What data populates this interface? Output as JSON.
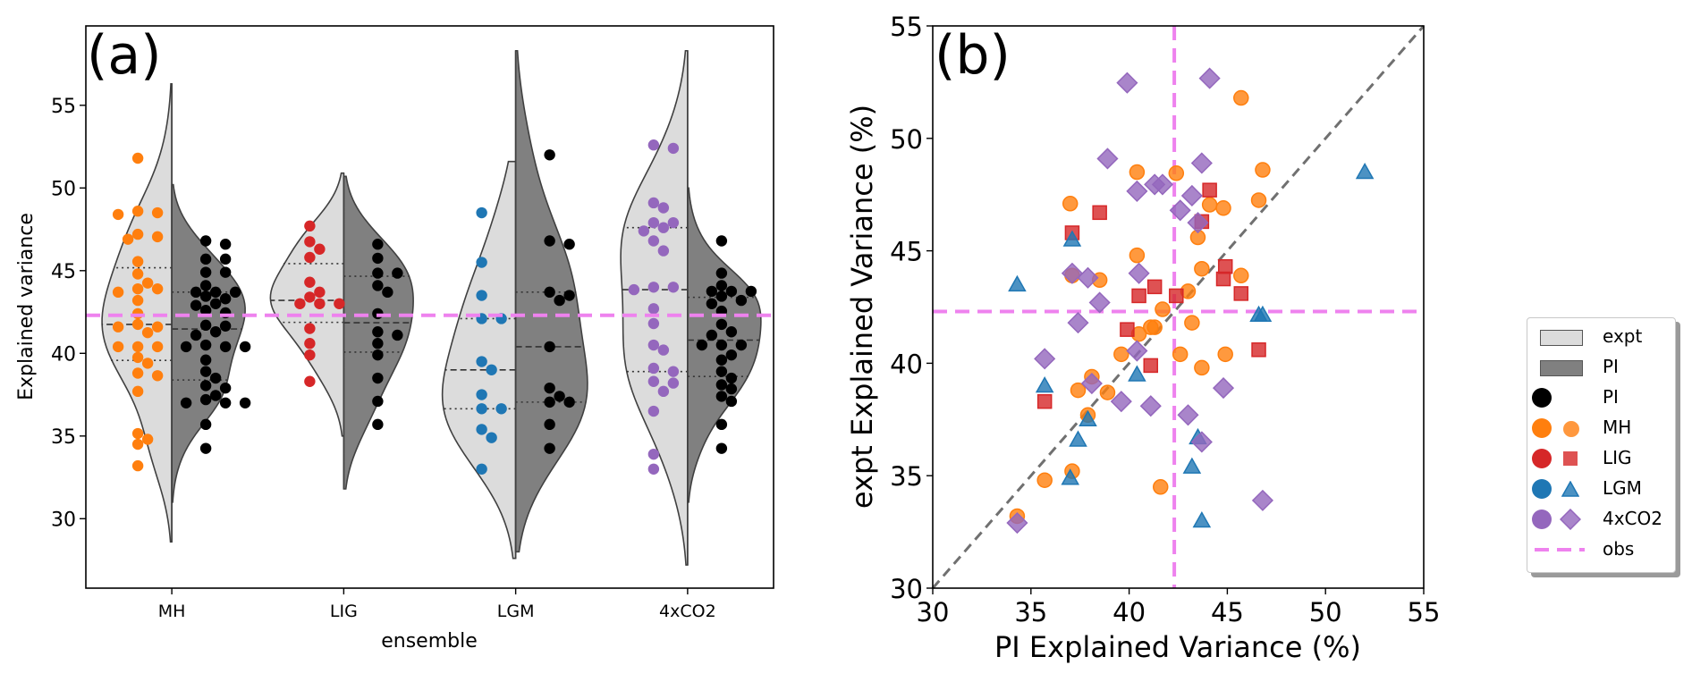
{
  "chart_data": [
    {
      "panel": "(a)",
      "type": "violin",
      "title": "",
      "panel_label": "(a)",
      "xlabel": "ensemble",
      "ylabel": "Explained variance",
      "categories": [
        "MH",
        "LIG",
        "LGM",
        "4xCO2"
      ],
      "ylim": [
        25.8,
        59.8
      ],
      "yticks": [
        30,
        35,
        40,
        45,
        50,
        55
      ],
      "obs_line": 42.3,
      "colors": {
        "expt_fill": "#dcdcdc",
        "pi_fill": "#808080",
        "outline": "#404040",
        "pi_dots": "#000000",
        "obs": "#ee82ee",
        "MH": "#ff7f0e",
        "LIG": "#d62728",
        "LGM": "#1f77b4",
        "4xCO2": "#9467bd"
      },
      "series": [
        {
          "name": "expt",
          "side": "left",
          "values": {
            "MH": [
              51.8,
              48.6,
              48.5,
              48.4,
              47.2,
              47.05,
              46.9,
              45.55,
              44.8,
              44.25,
              43.9,
              43.9,
              43.7,
              43.2,
              42.4,
              41.75,
              41.6,
              41.6,
              41.25,
              40.4,
              40.4,
              40.4,
              39.75,
              39.4,
              38.8,
              38.65,
              37.7,
              35.15,
              34.8,
              34.5,
              33.2
            ],
            "LIG": [
              47.7,
              46.75,
              46.3,
              45.8,
              44.3,
              43.7,
              43.4,
              43.0,
              43.0,
              43.0,
              41.5,
              40.6,
              39.9,
              38.3
            ],
            "LGM": [
              48.5,
              45.5,
              43.5,
              42.1,
              42.1,
              39.5,
              39.0,
              37.5,
              36.65,
              36.65,
              35.4,
              34.9,
              33.0
            ],
            "4xCO2": [
              52.6,
              52.4,
              49.1,
              48.8,
              47.9,
              47.9,
              47.6,
              47.4,
              46.8,
              46.2,
              44.0,
              43.85,
              44.0,
              42.7,
              41.8,
              40.5,
              40.2,
              39.1,
              38.9,
              38.2,
              38.3,
              37.7,
              36.5,
              33.9,
              33.0
            ]
          },
          "kde_range": {
            "MH": [
              28.6,
              56.3
            ],
            "LIG": [
              35.0,
              50.9
            ],
            "LGM": [
              27.6,
              51.6
            ],
            "4xCO2": [
              27.2,
              58.3
            ]
          }
        },
        {
          "name": "PI",
          "side": "right",
          "values": {
            "MH": [
              46.8,
              46.6,
              45.7,
              45.7,
              44.9,
              44.9,
              44.1,
              43.7,
              43.7,
              43.7,
              43.45,
              43.3,
              43.0,
              42.9,
              42.6,
              42.45,
              41.7,
              41.65,
              41.3,
              41.1,
              40.5,
              40.4,
              40.4,
              40.4,
              39.6,
              38.9,
              38.5,
              38.05,
              37.9,
              37.45,
              37.2,
              37.0,
              37.0,
              37.0,
              35.7,
              34.25
            ],
            "LIG": [
              46.6,
              45.75,
              44.85,
              44.85,
              44.1,
              43.7,
              42.4,
              41.3,
              41.1,
              40.6,
              39.9,
              38.5,
              37.1,
              35.7
            ],
            "LGM": [
              52.0,
              46.8,
              46.6,
              43.7,
              43.5,
              43.2,
              40.4,
              37.9,
              37.4,
              37.05,
              37.05,
              35.7,
              34.25
            ],
            "4xCO2": [
              46.8,
              44.85,
              44.1,
              43.75,
              43.75,
              43.75,
              43.45,
              43.2,
              43.0,
              42.55,
              41.75,
              41.3,
              41.1,
              40.5,
              40.5,
              40.5,
              39.9,
              39.6,
              38.9,
              38.5,
              38.1,
              37.85,
              37.4,
              37.1,
              35.7,
              34.25
            ]
          },
          "kde_range": {
            "MH": [
              31.0,
              50.2
            ],
            "LIG": [
              31.8,
              50.7
            ],
            "LGM": [
              28.0,
              58.3
            ],
            "4xCO2": [
              31.0,
              50.0
            ]
          }
        }
      ]
    },
    {
      "panel": "(b)",
      "type": "scatter",
      "panel_label": "(b)",
      "xlabel": "PI Explained Variance (%)",
      "ylabel": "expt Explained Variance (%)",
      "xlim": [
        30,
        55
      ],
      "ylim": [
        30,
        55
      ],
      "xticks": [
        30,
        35,
        40,
        45,
        50,
        55
      ],
      "yticks": [
        30,
        35,
        40,
        45,
        50,
        55
      ],
      "one_to_one_line": true,
      "obs_x": 42.3,
      "obs_y": 42.3,
      "series": [
        {
          "name": "MH",
          "marker": "circle",
          "color": "#ff7f0e",
          "points": [
            [
              45.7,
              51.8
            ],
            [
              40.4,
              48.5
            ],
            [
              42.4,
              48.45
            ],
            [
              46.8,
              48.6
            ],
            [
              44.1,
              47.05
            ],
            [
              44.8,
              46.9
            ],
            [
              37.0,
              47.1
            ],
            [
              46.6,
              47.25
            ],
            [
              43.5,
              45.6
            ],
            [
              40.4,
              44.8
            ],
            [
              37.1,
              43.9
            ],
            [
              38.5,
              43.7
            ],
            [
              43.7,
              44.2
            ],
            [
              45.7,
              43.9
            ],
            [
              43.0,
              43.2
            ],
            [
              41.7,
              42.4
            ],
            [
              43.2,
              41.8
            ],
            [
              40.5,
              41.3
            ],
            [
              41.3,
              41.6
            ],
            [
              41.1,
              41.6
            ],
            [
              39.6,
              40.4
            ],
            [
              42.6,
              40.4
            ],
            [
              44.9,
              40.4
            ],
            [
              43.7,
              39.8
            ],
            [
              38.1,
              39.4
            ],
            [
              37.4,
              38.8
            ],
            [
              38.9,
              38.7
            ],
            [
              37.9,
              37.7
            ],
            [
              37.1,
              35.2
            ],
            [
              35.7,
              34.8
            ],
            [
              41.6,
              34.5
            ],
            [
              34.3,
              33.2
            ]
          ]
        },
        {
          "name": "LIG",
          "marker": "square",
          "color": "#d62728",
          "points": [
            [
              44.1,
              47.7
            ],
            [
              38.5,
              46.7
            ],
            [
              43.7,
              46.3
            ],
            [
              37.1,
              45.8
            ],
            [
              44.9,
              44.3
            ],
            [
              44.8,
              43.75
            ],
            [
              41.3,
              43.4
            ],
            [
              40.5,
              43.0
            ],
            [
              42.4,
              43.0
            ],
            [
              45.7,
              43.1
            ],
            [
              39.9,
              41.5
            ],
            [
              46.6,
              40.6
            ],
            [
              41.1,
              39.9
            ],
            [
              35.7,
              38.3
            ]
          ]
        },
        {
          "name": "LGM",
          "marker": "triangle",
          "color": "#1f77b4",
          "points": [
            [
              52.0,
              48.5
            ],
            [
              37.1,
              45.5
            ],
            [
              34.3,
              43.5
            ],
            [
              46.6,
              42.15
            ],
            [
              46.8,
              42.15
            ],
            [
              40.4,
              39.5
            ],
            [
              35.7,
              39.0
            ],
            [
              37.9,
              37.5
            ],
            [
              37.4,
              36.6
            ],
            [
              43.5,
              36.7
            ],
            [
              43.2,
              35.4
            ],
            [
              37.0,
              34.9
            ],
            [
              43.7,
              33.0
            ]
          ]
        },
        {
          "name": "4xCO2",
          "marker": "diamond",
          "color": "#9467bd",
          "points": [
            [
              39.9,
              52.47
            ],
            [
              44.1,
              52.67
            ],
            [
              38.9,
              49.1
            ],
            [
              43.7,
              48.9
            ],
            [
              40.4,
              47.65
            ],
            [
              41.3,
              47.95
            ],
            [
              41.7,
              47.95
            ],
            [
              43.2,
              47.45
            ],
            [
              42.6,
              46.8
            ],
            [
              43.5,
              46.25
            ],
            [
              37.1,
              44.0
            ],
            [
              37.9,
              43.8
            ],
            [
              40.5,
              44.0
            ],
            [
              38.5,
              42.7
            ],
            [
              37.4,
              41.8
            ],
            [
              35.7,
              40.2
            ],
            [
              40.4,
              40.55
            ],
            [
              38.1,
              39.1
            ],
            [
              44.8,
              38.9
            ],
            [
              39.6,
              38.3
            ],
            [
              41.1,
              38.1
            ],
            [
              43.0,
              37.7
            ],
            [
              43.7,
              36.5
            ],
            [
              46.8,
              33.9
            ],
            [
              34.3,
              32.9
            ]
          ]
        }
      ]
    }
  ],
  "legend": {
    "placement": "right",
    "entries": [
      {
        "label": "expt",
        "symbol": "patch-light"
      },
      {
        "label": "PI",
        "symbol": "patch-dark"
      },
      {
        "label": "PI",
        "symbol": "dot-black"
      },
      {
        "label": "MH",
        "symbol": "dot-circle"
      },
      {
        "label": "LIG",
        "symbol": "dot-square"
      },
      {
        "label": "LGM",
        "symbol": "dot-triangle"
      },
      {
        "label": "4xCO2",
        "symbol": "dot-diamond"
      },
      {
        "label": "obs",
        "symbol": "dashed-line"
      }
    ]
  }
}
